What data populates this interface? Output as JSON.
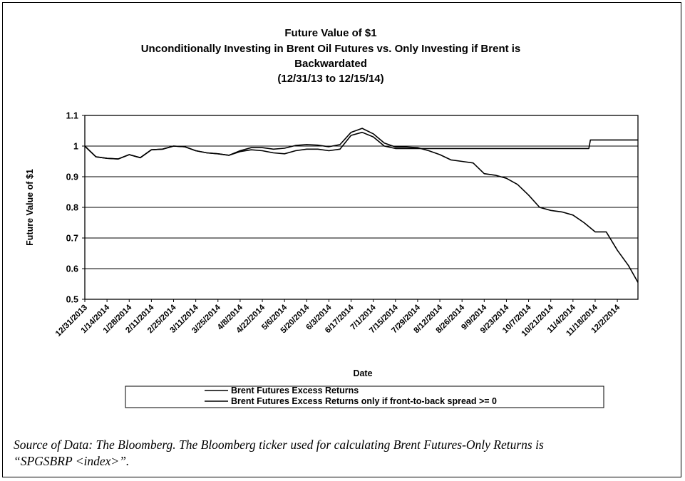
{
  "chart_data": {
    "type": "line",
    "title": [
      "Future Value of $1",
      "Unconditionally  Investing in Brent Oil Futures vs. Only Investing if Brent is",
      "Backwardated",
      "(12/31/13 to 12/15/14)"
    ],
    "xlabel": "Date",
    "ylabel": "Future Value of $1",
    "ylim": [
      0.5,
      1.1
    ],
    "yticks": [
      "0.5",
      "0.6",
      "0.7",
      "0.8",
      "0.9",
      "1",
      "1.1"
    ],
    "xlim": [
      "12/31/2013",
      "12/15/2014"
    ],
    "xticks": [
      "12/31/2013",
      "1/14/2014",
      "1/28/2014",
      "2/11/2014",
      "2/25/2014",
      "3/11/2014",
      "3/25/2014",
      "4/8/2014",
      "4/22/2014",
      "5/6/2014",
      "5/20/2014",
      "6/3/2014",
      "6/17/2014",
      "7/1/2014",
      "7/15/2014",
      "7/29/2014",
      "8/12/2014",
      "8/26/2014",
      "9/9/2014",
      "9/23/2014",
      "10/7/2014",
      "10/21/2014",
      "11/4/2014",
      "11/18/2014",
      "12/2/2014"
    ],
    "grid": "horizontal",
    "legend_position": "bottom",
    "series": [
      {
        "name": "Brent Futures Excess Returns",
        "x": [
          "2013-12-31",
          "2014-01-07",
          "2014-01-14",
          "2014-01-21",
          "2014-01-28",
          "2014-02-04",
          "2014-02-11",
          "2014-02-18",
          "2014-02-25",
          "2014-03-04",
          "2014-03-11",
          "2014-03-18",
          "2014-03-25",
          "2014-04-01",
          "2014-04-08",
          "2014-04-15",
          "2014-04-22",
          "2014-04-29",
          "2014-05-06",
          "2014-05-13",
          "2014-05-20",
          "2014-05-27",
          "2014-06-03",
          "2014-06-10",
          "2014-06-17",
          "2014-06-24",
          "2014-07-01",
          "2014-07-08",
          "2014-07-15",
          "2014-07-22",
          "2014-07-29",
          "2014-08-05",
          "2014-08-12",
          "2014-08-19",
          "2014-08-26",
          "2014-09-02",
          "2014-09-09",
          "2014-09-16",
          "2014-09-23",
          "2014-09-30",
          "2014-10-07",
          "2014-10-14",
          "2014-10-21",
          "2014-10-28",
          "2014-11-04",
          "2014-11-11",
          "2014-11-18",
          "2014-11-25",
          "2014-12-02",
          "2014-12-09",
          "2014-12-15"
        ],
        "values": [
          1.0,
          0.965,
          0.96,
          0.958,
          0.972,
          0.962,
          0.988,
          0.99,
          1.0,
          0.998,
          0.985,
          0.978,
          0.975,
          0.97,
          0.985,
          0.995,
          0.995,
          0.99,
          0.993,
          1.002,
          1.005,
          1.003,
          0.998,
          1.005,
          1.045,
          1.058,
          1.04,
          1.01,
          0.997,
          0.997,
          0.995,
          0.985,
          0.972,
          0.955,
          0.95,
          0.945,
          0.91,
          0.905,
          0.895,
          0.875,
          0.84,
          0.8,
          0.79,
          0.785,
          0.775,
          0.75,
          0.72,
          0.72,
          0.66,
          0.61,
          0.555
        ]
      },
      {
        "name": "Brent Futures Excess Returns only if front-to-back spread >= 0",
        "x": [
          "2013-12-31",
          "2014-01-07",
          "2014-01-14",
          "2014-01-21",
          "2014-01-28",
          "2014-02-04",
          "2014-02-11",
          "2014-02-18",
          "2014-02-25",
          "2014-03-04",
          "2014-03-11",
          "2014-03-18",
          "2014-03-25",
          "2014-04-01",
          "2014-04-08",
          "2014-04-15",
          "2014-04-22",
          "2014-04-29",
          "2014-05-06",
          "2014-05-13",
          "2014-05-20",
          "2014-05-27",
          "2014-06-03",
          "2014-06-10",
          "2014-06-17",
          "2014-06-24",
          "2014-07-01",
          "2014-07-08",
          "2014-07-15",
          "2014-07-22",
          "2014-07-29",
          "2014-08-12",
          "2014-09-09",
          "2014-10-07",
          "2014-11-04",
          "2014-11-14",
          "2014-11-15",
          "2014-12-15"
        ],
        "values": [
          1.0,
          0.965,
          0.96,
          0.958,
          0.972,
          0.962,
          0.988,
          0.99,
          1.0,
          0.998,
          0.985,
          0.978,
          0.975,
          0.97,
          0.982,
          0.988,
          0.985,
          0.978,
          0.975,
          0.985,
          0.99,
          0.99,
          0.985,
          0.99,
          1.035,
          1.045,
          1.03,
          1.0,
          0.992,
          0.992,
          0.992,
          0.992,
          0.992,
          0.992,
          0.992,
          0.992,
          1.02,
          1.02
        ]
      }
    ]
  },
  "source_note": {
    "line1": "Source of Data:  The Bloomberg. The Bloomberg ticker used for calculating Brent Futures-Only Returns is",
    "line2": "“SPGSBRP <index>”."
  }
}
